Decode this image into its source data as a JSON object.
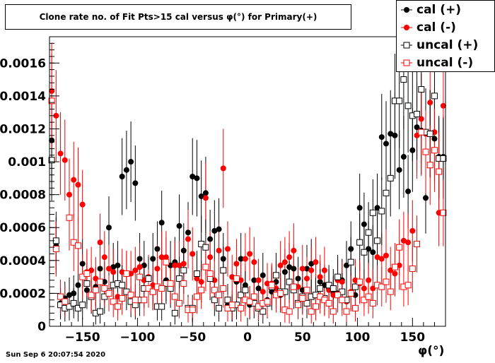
{
  "chart_data": {
    "type": "scatter",
    "title": "Clone rate no. of Fit Pts>15 cal versus φ(°) for Primary(+)",
    "xlabel": "φ(°)",
    "ylabel": "",
    "xlim": [
      -180,
      180
    ],
    "ylim": [
      0,
      0.00176
    ],
    "x_ticks": [
      -150,
      -100,
      -50,
      0,
      50,
      100,
      150
    ],
    "x_tick_labels": [
      "−150",
      "−100",
      "−50",
      "0",
      "50",
      "100",
      "150"
    ],
    "y_ticks": [
      0,
      0.0002,
      0.0004,
      0.0006,
      0.0008,
      0.001,
      0.0012,
      0.0014,
      0.0016
    ],
    "y_tick_labels": [
      "0",
      "0.0002",
      "0.0004",
      "0.0006",
      "0.0008",
      "0.001",
      "0.0012",
      "0.0014",
      "0.0016"
    ],
    "legend_position": "top-right",
    "grid": false,
    "series": [
      {
        "name": "cal (+)",
        "color": "#000000",
        "marker": "filled-circle",
        "x": [
          -178,
          -174,
          -170,
          -166,
          -162,
          -158,
          -154,
          -150,
          -146,
          -142,
          -138,
          -134,
          -130,
          -126,
          -122,
          -118,
          -114,
          -110,
          -106,
          -102,
          -98,
          -94,
          -90,
          -86,
          -82,
          -78,
          -74,
          -70,
          -66,
          -62,
          -58,
          -54,
          -50,
          -46,
          -42,
          -38,
          -34,
          -30,
          -26,
          -22,
          -18,
          -14,
          -10,
          -6,
          -2,
          2,
          6,
          10,
          14,
          18,
          22,
          26,
          30,
          34,
          38,
          42,
          46,
          50,
          54,
          58,
          62,
          66,
          70,
          74,
          78,
          82,
          86,
          90,
          94,
          98,
          102,
          106,
          110,
          114,
          118,
          122,
          126,
          130,
          134,
          138,
          142,
          146,
          150,
          154,
          158,
          162,
          166,
          170,
          174,
          178
        ],
        "y": [
          0.00113,
          0.00049,
          0.00014,
          0.00017,
          0.00019,
          0.0002,
          0.00025,
          0.00038,
          0.00022,
          0.00019,
          0.00024,
          0.00035,
          0.00027,
          0.0006,
          0.00036,
          0.00037,
          0.00091,
          0.00095,
          0.001,
          0.00087,
          0.00041,
          0.00037,
          0.00029,
          0.00041,
          0.00047,
          0.00063,
          0.00028,
          0.00037,
          0.00039,
          0.00061,
          0.00046,
          0.00057,
          0.00091,
          0.0009,
          0.00079,
          0.00081,
          0.00053,
          0.00058,
          0.00059,
          0.00041,
          0.00013,
          0.00011,
          0.00027,
          0.00041,
          0.00025,
          0.00013,
          0.00028,
          0.00023,
          0.00031,
          0.00016,
          0.00021,
          0.00027,
          0.00019,
          0.00033,
          0.00036,
          0.00035,
          0.00029,
          0.00022,
          0.00035,
          0.00038,
          0.00019,
          0.00027,
          0.00025,
          0.00023,
          0.0002,
          0.0002,
          0.00028,
          0.00037,
          0.00047,
          0.00019,
          0.00072,
          0.00062,
          0.00047,
          0.00045,
          0.00072,
          0.00115,
          0.00111,
          0.00117,
          0.00116,
          0.00095,
          0.00103,
          0.00082,
          0.00107,
          0.00121,
          0.00119,
          0.00078,
          0.00117,
          0.00114,
          0.00103,
          0.00103
        ]
      },
      {
        "name": "cal (-)",
        "color": "#ff0000",
        "marker": "filled-circle",
        "x": [
          -178,
          -174,
          -170,
          -166,
          -162,
          -158,
          -154,
          -150,
          -146,
          -142,
          -138,
          -134,
          -130,
          -126,
          -122,
          -118,
          -114,
          -110,
          -106,
          -102,
          -98,
          -94,
          -90,
          -86,
          -82,
          -78,
          -74,
          -70,
          -66,
          -62,
          -58,
          -54,
          -50,
          -46,
          -42,
          -38,
          -34,
          -30,
          -26,
          -22,
          -18,
          -14,
          -10,
          -6,
          -2,
          2,
          6,
          10,
          14,
          18,
          22,
          26,
          30,
          34,
          38,
          42,
          46,
          50,
          54,
          58,
          62,
          66,
          70,
          74,
          78,
          82,
          86,
          90,
          94,
          98,
          102,
          106,
          110,
          114,
          118,
          122,
          126,
          130,
          134,
          138,
          142,
          146,
          150,
          154,
          158,
          162,
          166,
          170,
          174,
          178
        ],
        "y": [
          0.00143,
          0.00128,
          0.00105,
          0.00101,
          0.0008,
          0.00089,
          0.00086,
          0.00074,
          0.00033,
          0.00034,
          0.00029,
          0.00051,
          0.00042,
          0.00035,
          0.00033,
          0.00018,
          0.00033,
          0.00032,
          0.00032,
          0.00034,
          0.00036,
          0.00028,
          0.0003,
          0.00025,
          0.00035,
          0.00042,
          0.00042,
          0.00026,
          0.00037,
          0.00037,
          0.00038,
          0.00053,
          0.00044,
          0.00029,
          0.00027,
          0.00078,
          0.00042,
          0.00028,
          0.00046,
          0.00096,
          0.00047,
          0.0003,
          0.00038,
          0.00028,
          0.00041,
          0.00044,
          0.00039,
          0.00028,
          0.00021,
          0.00026,
          0.00026,
          0.00023,
          0.00037,
          0.00039,
          0.00042,
          0.00046,
          0.00024,
          0.00035,
          0.00029,
          0.00034,
          0.00039,
          0.0003,
          0.00034,
          0.00022,
          0.00019,
          0.00028,
          0.00027,
          0.00015,
          0.00021,
          0.00028,
          0.00026,
          0.00023,
          0.00028,
          0.00023,
          0.00042,
          0.00041,
          0.00043,
          0.00034,
          0.00032,
          0.00037,
          0.00052,
          0.00051,
          0.00058,
          0.00116,
          0.00126,
          0.00117,
          0.00136,
          0.00118,
          0.00069,
          0.00134
        ]
      },
      {
        "name": "uncal (+)",
        "color": "#000000",
        "marker": "open-square",
        "x": [
          -178,
          -174,
          -170,
          -166,
          -162,
          -158,
          -154,
          -150,
          -146,
          -142,
          -138,
          -134,
          -130,
          -126,
          -122,
          -118,
          -114,
          -110,
          -106,
          -102,
          -98,
          -94,
          -90,
          -86,
          -82,
          -78,
          -74,
          -70,
          -66,
          -62,
          -58,
          -54,
          -50,
          -46,
          -42,
          -38,
          -34,
          -30,
          -26,
          -22,
          -18,
          -14,
          -10,
          -6,
          -2,
          2,
          6,
          10,
          14,
          18,
          22,
          26,
          30,
          34,
          38,
          42,
          46,
          50,
          54,
          58,
          62,
          66,
          70,
          74,
          78,
          82,
          86,
          90,
          94,
          98,
          102,
          106,
          110,
          114,
          118,
          122,
          126,
          130,
          134,
          138,
          142,
          146,
          150,
          154,
          158,
          162,
          166,
          170,
          174,
          178
        ],
        "y": [
          0.00101,
          0.00052,
          0.00013,
          0.00011,
          0.00012,
          0.00014,
          0.00011,
          0.00013,
          0.00026,
          0.00018,
          8e-05,
          9e-05,
          0.00018,
          0.00021,
          0.00025,
          0.00026,
          0.00025,
          0.00021,
          0.00015,
          0.00013,
          0.00016,
          0.00023,
          0.00029,
          0.00021,
          0.00012,
          0.00012,
          0.00026,
          0.00023,
          8e-05,
          0.00029,
          0.00034,
          0.00011,
          0.00011,
          0.00032,
          0.0005,
          0.00048,
          0.00029,
          0.00016,
          0.00011,
          0.00034,
          0.00016,
          0.00011,
          0.00013,
          0.00019,
          0.00022,
          0.00015,
          0.00014,
          0.00011,
          9e-05,
          0.00014,
          0.00024,
          0.00031,
          0.00021,
          0.00021,
          0.00027,
          0.00022,
          0.00014,
          0.00018,
          0.00014,
          0.00018,
          0.00019,
          0.00023,
          0.00017,
          0.00025,
          0.00023,
          0.0003,
          0.00021,
          0.00016,
          0.00039,
          0.00024,
          0.00051,
          0.00045,
          0.00057,
          0.00069,
          0.00052,
          0.0007,
          0.00081,
          0.0009,
          0.00137,
          0.00137,
          0.0015,
          0.00134,
          0.00128,
          0.00129,
          0.00144,
          0.00118,
          0.00117,
          0.0014,
          0.00102,
          0.00102
        ]
      },
      {
        "name": "uncal (-)",
        "color": "#ff0000",
        "marker": "open-square",
        "x": [
          -178,
          -174,
          -170,
          -166,
          -162,
          -158,
          -154,
          -150,
          -146,
          -142,
          -138,
          -134,
          -130,
          -126,
          -122,
          -118,
          -114,
          -110,
          -106,
          -102,
          -98,
          -94,
          -90,
          -86,
          -82,
          -78,
          -74,
          -70,
          -66,
          -62,
          -58,
          -54,
          -50,
          -46,
          -42,
          -38,
          -34,
          -30,
          -26,
          -22,
          -18,
          -14,
          -10,
          -6,
          -2,
          2,
          6,
          10,
          14,
          18,
          22,
          26,
          30,
          34,
          38,
          42,
          46,
          50,
          54,
          58,
          62,
          66,
          70,
          74,
          78,
          82,
          86,
          90,
          94,
          98,
          102,
          106,
          110,
          114,
          118,
          122,
          126,
          130,
          134,
          138,
          142,
          146,
          150,
          154,
          158,
          162,
          166,
          170,
          174,
          178
        ],
        "y": [
          0.00137,
          0.00047,
          0.00018,
          0.00015,
          0.00066,
          0.00051,
          0.00049,
          0.0003,
          0.00032,
          0.00019,
          0.00022,
          0.00027,
          0.00023,
          0.0002,
          0.00015,
          0.00012,
          0.00017,
          0.00032,
          0.00019,
          0.00016,
          0.0003,
          0.00016,
          0.00023,
          0.00021,
          0.00024,
          0.00023,
          0.00039,
          0.00026,
          0.00018,
          0.00014,
          0.00026,
          0.0001,
          0.0001,
          0.00018,
          0.00022,
          0.00036,
          0.00032,
          0.00022,
          0.00019,
          0.00023,
          0.00011,
          0.00013,
          0.00029,
          0.00011,
          0.00016,
          0.00015,
          0.00018,
          0.00012,
          0.00014,
          0.00015,
          0.00025,
          0.00019,
          0.0002,
          0.0001,
          9e-05,
          0.00024,
          0.00013,
          0.00017,
          0.00022,
          9e-05,
          0.00012,
          0.00018,
          0.00016,
          0.00014,
          9e-05,
          0.00019,
          0.00016,
          9e-05,
          0.0002,
          0.00011,
          0.00027,
          0.00016,
          0.00018,
          0.00014,
          0.00025,
          0.00024,
          0.00027,
          0.00021,
          0.00036,
          0.00048,
          0.00024,
          0.00025,
          0.00035,
          0.0005,
          0.00118,
          0.00106,
          0.00098,
          0.00107,
          0.00094,
          0.00069
        ]
      }
    ]
  },
  "footer": {
    "datestamp": "Sun Sep  6 20:07:54 2020"
  }
}
